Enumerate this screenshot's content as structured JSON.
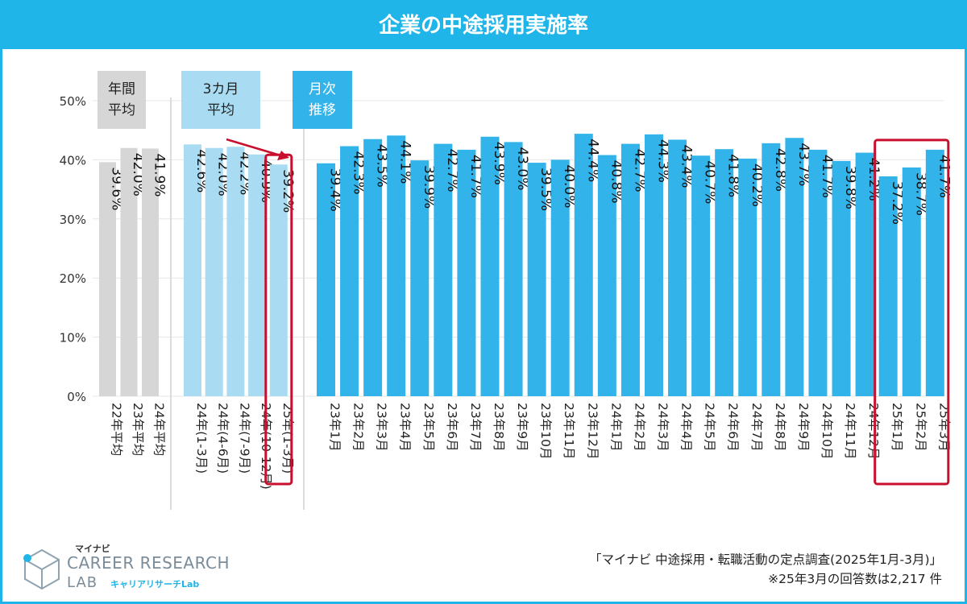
{
  "header": {
    "title": "企業の中途採用実施率"
  },
  "chart_data": {
    "type": "bar",
    "yticks": [
      "0%",
      "10%",
      "20%",
      "30%",
      "40%",
      "50%"
    ],
    "ylim": [
      0,
      50
    ],
    "groups": [
      {
        "label": "年間\n平均",
        "color": "#d6d6d6",
        "label_bg": "#d6d6d6",
        "categories": [
          "22年平均",
          "23年平均",
          "24年平均"
        ],
        "values": [
          39.6,
          42.0,
          41.9
        ],
        "value_labels": [
          "39.6%",
          "42.0%",
          "41.9%"
        ]
      },
      {
        "label": "3カ月\n平均",
        "color": "#a9dcf2",
        "label_bg": "#a9dcf2",
        "categories": [
          "24年(1-3月)",
          "24年(4-6月)",
          "24年(7-9月)",
          "24年(10-12月)",
          "25年(1-3月)"
        ],
        "values": [
          42.6,
          42.0,
          42.2,
          40.9,
          39.2
        ],
        "value_labels": [
          "42.6%",
          "42.0%",
          "42.2%",
          "40.9%",
          "39.2%"
        ],
        "highlight": [
          4
        ]
      },
      {
        "label": "月次\n推移",
        "color": "#32b4ea",
        "label_bg": "#32b4ea",
        "categories": [
          "23年1月",
          "23年2月",
          "23年3月",
          "23年4月",
          "23年5月",
          "23年6月",
          "23年7月",
          "23年8月",
          "23年9月",
          "23年10月",
          "23年11月",
          "23年12月",
          "24年1月",
          "24年2月",
          "24年3月",
          "24年4月",
          "24年5月",
          "24年6月",
          "24年7月",
          "24年8月",
          "24年9月",
          "24年10月",
          "24年11月",
          "24年12月",
          "25年1月",
          "25年2月",
          "25年3月"
        ],
        "values": [
          39.4,
          42.3,
          43.5,
          44.1,
          39.9,
          42.7,
          41.7,
          43.9,
          43.0,
          39.5,
          40.0,
          44.4,
          40.8,
          42.7,
          44.3,
          43.4,
          40.7,
          41.8,
          40.2,
          42.8,
          43.7,
          41.7,
          39.8,
          41.2,
          37.2,
          38.7,
          41.7
        ],
        "value_labels": [
          "39.4%",
          "42.3%",
          "43.5%",
          "44.1%",
          "39.9%",
          "42.7%",
          "41.7%",
          "43.9%",
          "43.0%",
          "39.5%",
          "40.0%",
          "44.4%",
          "40.8%",
          "42.7%",
          "44.3%",
          "43.4%",
          "40.7%",
          "41.8%",
          "40.2%",
          "42.8%",
          "43.7%",
          "41.7%",
          "39.8%",
          "41.2%",
          "37.2%",
          "38.7%",
          "41.7%"
        ],
        "highlight": [
          24,
          25,
          26
        ]
      }
    ]
  },
  "logo": {
    "small": "マイナビ",
    "main": "CAREER RESEARCH",
    "lab": "LAB",
    "sub": "キャリアリサーチLab"
  },
  "footer": {
    "source": "「マイナビ 中途採用・転職活動の定点調査(2025年1月-3月)」",
    "note": "※25年3月の回答数は2,217 件"
  },
  "colors": {
    "accent": "#1fb5e8",
    "highlight": "#c8102e",
    "gridline": "#e6e6e6"
  }
}
